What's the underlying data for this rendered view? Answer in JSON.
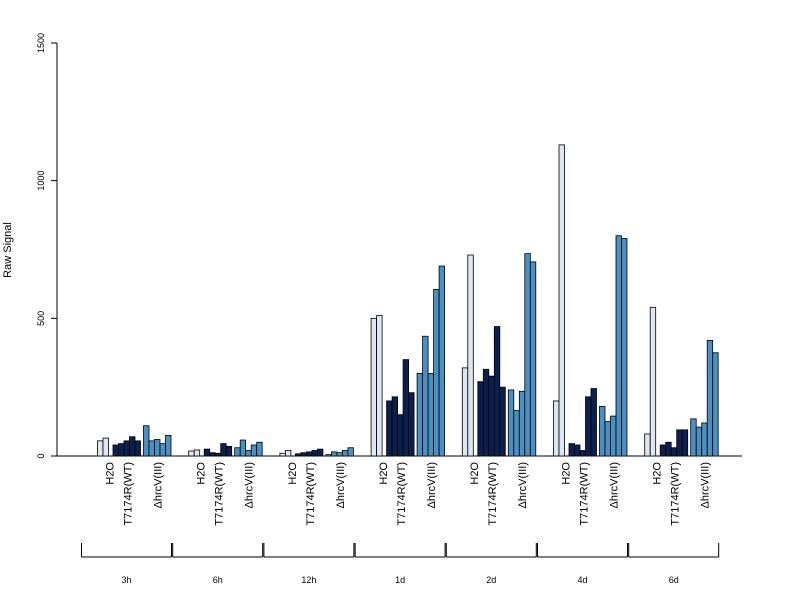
{
  "chart_data": {
    "type": "bar",
    "ylabel": "Raw Signal",
    "ylim": [
      0,
      1500
    ],
    "yticks": [
      0,
      500,
      1000,
      1500
    ],
    "grid": false,
    "groups": [
      "3h",
      "6h",
      "12h",
      "1d",
      "2d",
      "4d",
      "6d"
    ],
    "subgroups": [
      "H2O",
      "T7174R(WT)",
      "ΔhrcV(III)"
    ],
    "colors": {
      "H2O": "#dde6f1",
      "T7174R(WT)": "#0c2050",
      "ΔhrcV(III)": "#4a90c2"
    },
    "values": {
      "3h": {
        "H2O": [
          55,
          65
        ],
        "T7174R(WT)": [
          40,
          45,
          55,
          70,
          55
        ],
        "ΔhrcV(III)": [
          110,
          55,
          60,
          45,
          75
        ]
      },
      "6h": {
        "H2O": [
          18,
          22
        ],
        "T7174R(WT)": [
          25,
          12,
          10,
          45,
          35
        ],
        "ΔhrcV(III)": [
          30,
          58,
          20,
          40,
          50
        ]
      },
      "12h": {
        "H2O": [
          10,
          20
        ],
        "T7174R(WT)": [
          8,
          12,
          15,
          20,
          25
        ],
        "ΔhrcV(III)": [
          5,
          15,
          12,
          20,
          30
        ]
      },
      "1d": {
        "H2O": [
          500,
          510
        ],
        "T7174R(WT)": [
          200,
          215,
          150,
          350,
          230
        ],
        "ΔhrcV(III)": [
          300,
          435,
          300,
          605,
          690
        ]
      },
      "2d": {
        "H2O": [
          320,
          730
        ],
        "T7174R(WT)": [
          270,
          315,
          290,
          470,
          250
        ],
        "ΔhrcV(III)": [
          240,
          165,
          235,
          735,
          705
        ]
      },
      "4d": {
        "H2O": [
          200,
          1130
        ],
        "T7174R(WT)": [
          45,
          40,
          20,
          215,
          245
        ],
        "ΔhrcV(III)": [
          180,
          125,
          145,
          800,
          790
        ]
      },
      "6d": {
        "H2O": [
          80,
          540
        ],
        "T7174R(WT)": [
          40,
          50,
          30,
          95,
          95
        ],
        "ΔhrcV(III)": [
          135,
          105,
          120,
          420,
          375
        ]
      }
    }
  }
}
